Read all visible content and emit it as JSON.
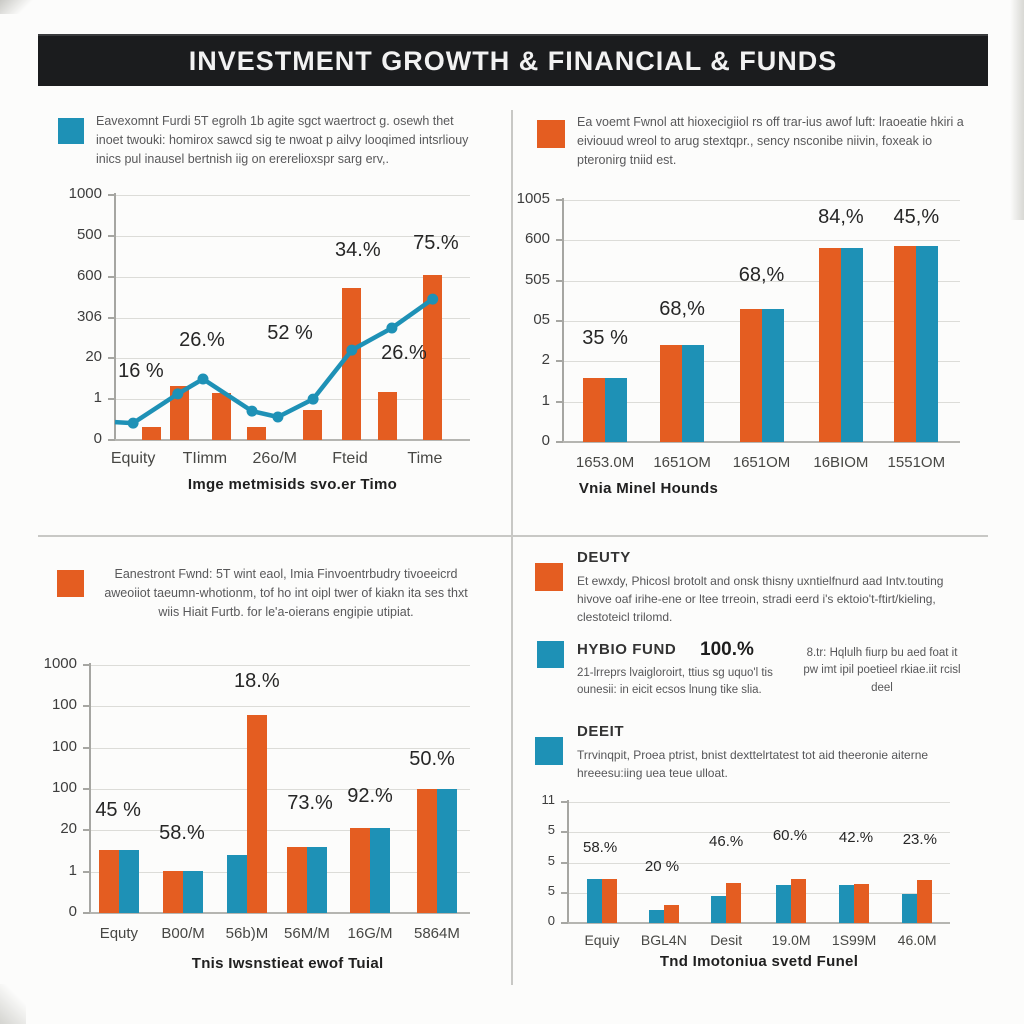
{
  "banner": {
    "title": "INVESTMENT GROWTH & FINANCIAL & FUNDS"
  },
  "colors": {
    "orange": "#E45D21",
    "teal": "#1E91B6",
    "banner_bg": "#1B1C1E",
    "banner_text": "#F2F2F2"
  },
  "quadrants": {
    "top_left": {
      "legend_color": "teal",
      "legend_text": "Eavexomnt Furdi 5T egrolh 1b agite sgct waertroct g. osewh thet inoet twouki: homirox sawcd sig te nwoat p ailvy looqimed intsrliouy inics pul inausel bertnish iig on ererelioxspr sarg erv,."
    },
    "top_right": {
      "legend_color": "orange",
      "legend_text": "Ea voemt Fwnol att hioxecigiiol rs off trar-ius awof luft: lraoeatie hkiri a eiviouud wreol to arug stextqpr., sency nsconibe niivin, foxeak io pteronirg tniid est."
    },
    "bottom_left": {
      "legend_color": "orange",
      "legend_text": "Eanestront Fwnd: 5T wint eaol, Imia Finvoentrbudry tivoeeicrd aweoiiot taeumn-whotionm, tof ho int oipl twer of kiakn ita ses thxt wiis Hiait Furtb. for le'a-oierans engipie utipiat."
    },
    "bottom_right": {
      "blocks": [
        {
          "square": "orange",
          "heading": "DEUTY",
          "text": "Et ewxdy, Phicosl brotolt and onsk thisny uxntielfnurd aad Intv.touting hivove oaf irihe-ene or ltee trreoin, stradi eerd i's ektoio't-ftirt/kieling, clestoteicl trilomd."
        },
        {
          "square": "teal",
          "heading": "HYBIO FUND",
          "value": "100.%",
          "text": "21-lrreprs lvaigloroirt, ttius sg uquo'l tis ounesii: in eicit ecsos lnung tike slia.",
          "side_text": "8.tr: Hqlulh fiurp bu aed foat it pw imt ipil poetieel rkiae.iit rcisl deel"
        },
        {
          "square": "teal",
          "heading": "DEEIT",
          "text": "Trrvinqpit, Proea ptrist, bnist dexttelrtatest tot aid theeronie aiterne hreeesu:iing uea teue ulloat."
        }
      ]
    }
  },
  "chart_data": [
    {
      "id": "tl",
      "type": "bar",
      "line_overlay": true,
      "y_ticks": [
        "1000",
        "500",
        "600",
        "306",
        "20",
        "1",
        "0"
      ],
      "bars": [
        {
          "c": "orange",
          "x": 0.076,
          "h": 0.053
        },
        {
          "c": "orange",
          "x": 0.155,
          "h": 0.22
        },
        {
          "c": "orange",
          "x": 0.273,
          "h": 0.19
        },
        {
          "c": "orange",
          "x": 0.372,
          "h": 0.053
        },
        {
          "c": "orange",
          "x": 0.53,
          "h": 0.122
        },
        {
          "c": "orange",
          "x": 0.64,
          "h": 0.62
        },
        {
          "c": "orange",
          "x": 0.74,
          "h": 0.196
        },
        {
          "c": "orange",
          "x": 0.868,
          "h": 0.673
        }
      ],
      "line": [
        {
          "x": 0.0,
          "y": 0.073,
          "dot": false
        },
        {
          "x": 0.051,
          "y": 0.069
        },
        {
          "x": 0.177,
          "y": 0.188
        },
        {
          "x": 0.248,
          "y": 0.249
        },
        {
          "x": 0.386,
          "y": 0.118
        },
        {
          "x": 0.459,
          "y": 0.094
        },
        {
          "x": 0.558,
          "y": 0.167
        },
        {
          "x": 0.667,
          "y": 0.367
        },
        {
          "x": 0.78,
          "y": 0.457
        },
        {
          "x": 0.895,
          "y": 0.575
        }
      ],
      "pct_labels": [
        {
          "t": "16 %",
          "x": 0.073,
          "y": 0.233
        },
        {
          "t": "26.%",
          "x": 0.245,
          "y": 0.36
        },
        {
          "t": "52 %",
          "x": 0.493,
          "y": 0.388
        },
        {
          "t": "34.%",
          "x": 0.684,
          "y": 0.727
        },
        {
          "t": "26.%",
          "x": 0.814,
          "y": 0.306
        },
        {
          "t": "75.%",
          "x": 0.904,
          "y": 0.755
        }
      ],
      "categories": [
        {
          "t": "Equity",
          "x": 0.051
        },
        {
          "t": "TIimm",
          "x": 0.253
        },
        {
          "t": "26o/M",
          "x": 0.45
        },
        {
          "t": "Fteid",
          "x": 0.662
        },
        {
          "t": "Time",
          "x": 0.873
        }
      ],
      "xlabel": "Imge metmisids svo.er Timo",
      "xlabel_pos": {
        "x": 0.5,
        "align": "center"
      }
    },
    {
      "id": "tr",
      "type": "bar",
      "y_ticks": [
        "1005",
        "600",
        "505",
        "05",
        "2",
        "1",
        "0"
      ],
      "pairs": [
        {
          "x": 0.106,
          "bars": [
            {
              "c": "orange",
              "h": 0.265
            },
            {
              "c": "teal",
              "h": 0.265
            }
          ]
        },
        {
          "x": 0.3,
          "bars": [
            {
              "c": "orange",
              "h": 0.4
            },
            {
              "c": "teal",
              "h": 0.4
            }
          ]
        },
        {
          "x": 0.5,
          "bars": [
            {
              "c": "orange",
              "h": 0.55
            },
            {
              "c": "teal",
              "h": 0.55
            }
          ]
        },
        {
          "x": 0.7,
          "bars": [
            {
              "c": "orange",
              "h": 0.8
            },
            {
              "c": "teal",
              "h": 0.8
            }
          ]
        },
        {
          "x": 0.89,
          "bars": [
            {
              "c": "orange",
              "h": 0.81
            },
            {
              "c": "teal",
              "h": 0.81
            }
          ]
        }
      ],
      "pct_labels": [
        {
          "t": "35 %",
          "x": 0.106,
          "y": 0.38
        },
        {
          "t": "68,%",
          "x": 0.3,
          "y": 0.5
        },
        {
          "t": "68,%",
          "x": 0.5,
          "y": 0.64
        },
        {
          "t": "84,%",
          "x": 0.7,
          "y": 0.88
        },
        {
          "t": "45,%",
          "x": 0.89,
          "y": 0.88
        }
      ],
      "categories": [
        {
          "t": "1653.0M",
          "x": 0.106
        },
        {
          "t": "1651OM",
          "x": 0.3
        },
        {
          "t": "1651OM",
          "x": 0.5
        },
        {
          "t": "16BIOM",
          "x": 0.7
        },
        {
          "t": "1551OM",
          "x": 0.89
        }
      ],
      "xlabel": "Vnia Minel Hounds",
      "xlabel_pos": {
        "x": 0.04,
        "align": "left"
      }
    },
    {
      "id": "bl",
      "type": "bar",
      "y_ticks": [
        "1000",
        "100",
        "100",
        "100",
        "20",
        "1",
        "0"
      ],
      "pairs": [
        {
          "x": 0.076,
          "bars": [
            {
              "c": "orange",
              "h": 0.254
            },
            {
              "c": "teal",
              "h": 0.254
            }
          ]
        },
        {
          "x": 0.245,
          "bars": [
            {
              "c": "orange",
              "h": 0.169
            },
            {
              "c": "teal",
              "h": 0.169
            }
          ]
        },
        {
          "x": 0.413,
          "bars": [
            {
              "c": "teal",
              "h": 0.234
            },
            {
              "c": "orange",
              "h": 0.8
            }
          ]
        },
        {
          "x": 0.571,
          "bars": [
            {
              "c": "orange",
              "h": 0.266
            },
            {
              "c": "teal",
              "h": 0.266
            }
          ]
        },
        {
          "x": 0.737,
          "bars": [
            {
              "c": "orange",
              "h": 0.343
            },
            {
              "c": "teal",
              "h": 0.343
            }
          ]
        },
        {
          "x": 0.913,
          "bars": [
            {
              "c": "orange",
              "h": 0.5
            },
            {
              "c": "teal",
              "h": 0.5
            }
          ]
        }
      ],
      "pct_labels": [
        {
          "t": "45 %",
          "x": 0.074,
          "y": 0.367
        },
        {
          "t": "58.%",
          "x": 0.242,
          "y": 0.274
        },
        {
          "t": "18.%",
          "x": 0.439,
          "y": 0.887
        },
        {
          "t": "73.%",
          "x": 0.579,
          "y": 0.395
        },
        {
          "t": "92.%",
          "x": 0.737,
          "y": 0.423
        },
        {
          "t": "50.%",
          "x": 0.9,
          "y": 0.573
        }
      ],
      "categories": [
        {
          "t": "Equty",
          "x": 0.076
        },
        {
          "t": "B00/M",
          "x": 0.245
        },
        {
          "t": "56b)M",
          "x": 0.413
        },
        {
          "t": "56M/M",
          "x": 0.571
        },
        {
          "t": "16G/M",
          "x": 0.737
        },
        {
          "t": "5864M",
          "x": 0.913
        }
      ],
      "xlabel": "Tnis Iwsnstieat ewof Tuial",
      "xlabel_pos": {
        "x": 0.52,
        "align": "center"
      }
    },
    {
      "id": "br",
      "type": "bar",
      "y_ticks": [
        "11",
        "5",
        "5",
        "5",
        "0"
      ],
      "pairs": [
        {
          "x": 0.089,
          "bars": [
            {
              "c": "teal",
              "h": 0.36
            },
            {
              "c": "orange",
              "h": 0.36
            }
          ]
        },
        {
          "x": 0.251,
          "bars": [
            {
              "c": "teal",
              "h": 0.107
            },
            {
              "c": "orange",
              "h": 0.149
            }
          ]
        },
        {
          "x": 0.414,
          "bars": [
            {
              "c": "teal",
              "h": 0.223
            },
            {
              "c": "orange",
              "h": 0.33
            }
          ]
        },
        {
          "x": 0.584,
          "bars": [
            {
              "c": "teal",
              "h": 0.314
            },
            {
              "c": "orange",
              "h": 0.364
            }
          ]
        },
        {
          "x": 0.749,
          "bars": [
            {
              "c": "teal",
              "h": 0.314
            },
            {
              "c": "orange",
              "h": 0.322
            }
          ]
        },
        {
          "x": 0.914,
          "bars": [
            {
              "c": "teal",
              "h": 0.24
            },
            {
              "c": "orange",
              "h": 0.355
            }
          ]
        }
      ],
      "pct_labels": [
        {
          "t": "58.%",
          "x": 0.084,
          "y": 0.55
        },
        {
          "t": "20 %",
          "x": 0.246,
          "y": 0.4
        },
        {
          "t": "46.%",
          "x": 0.414,
          "y": 0.6
        },
        {
          "t": "60.%",
          "x": 0.581,
          "y": 0.65
        },
        {
          "t": "42.%",
          "x": 0.754,
          "y": 0.64
        },
        {
          "t": "23.%",
          "x": 0.921,
          "y": 0.62
        }
      ],
      "categories": [
        {
          "t": "Equiy",
          "x": 0.089
        },
        {
          "t": "BGL4N",
          "x": 0.251
        },
        {
          "t": "Desit",
          "x": 0.414
        },
        {
          "t": "19.0M",
          "x": 0.584
        },
        {
          "t": "1S99M",
          "x": 0.749
        },
        {
          "t": "46.0M",
          "x": 0.914
        }
      ],
      "xlabel": "Tnd Imotoniua svetd Funel",
      "xlabel_pos": {
        "x": 0.5,
        "align": "center"
      }
    }
  ]
}
